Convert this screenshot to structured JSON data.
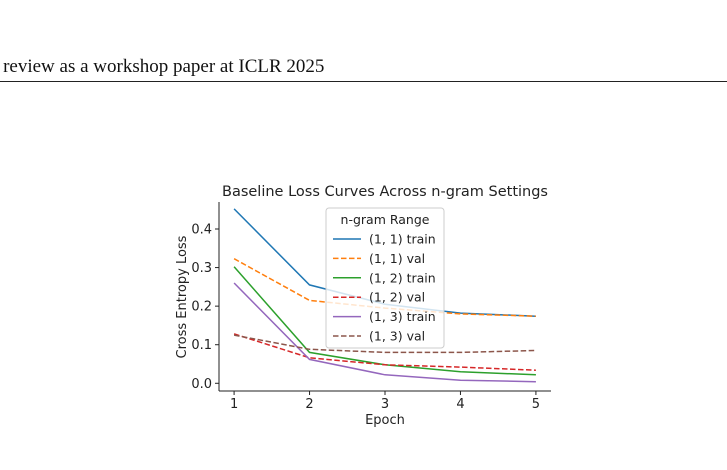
{
  "page": {
    "header": "r review as a workshop paper at ICLR 2025"
  },
  "chart_data": {
    "type": "line",
    "title": "Baseline Loss Curves Across n-gram Settings",
    "xlabel": "Epoch",
    "ylabel": "Cross Entropy Loss",
    "x": [
      1,
      2,
      3,
      4,
      5
    ],
    "xlim": [
      0.8,
      5.2
    ],
    "ylim": [
      -0.02,
      0.47
    ],
    "xticks": [
      1,
      2,
      3,
      4,
      5
    ],
    "yticks": [
      0.0,
      0.1,
      0.2,
      0.3,
      0.4
    ],
    "ytick_labels": [
      "0.0",
      "0.1",
      "0.2",
      "0.3",
      "0.4"
    ],
    "grid": false,
    "legend": {
      "title": "n-gram Range",
      "placement": "top-center"
    },
    "series": [
      {
        "name": "(1, 1) train",
        "color": "#1f77b4",
        "style": "solid",
        "values": [
          0.452,
          0.255,
          0.205,
          0.182,
          0.174
        ]
      },
      {
        "name": "(1, 1) val",
        "color": "#ff7f0e",
        "style": "dashed",
        "values": [
          0.323,
          0.215,
          0.195,
          0.18,
          0.174
        ]
      },
      {
        "name": "(1, 2) train",
        "color": "#2ca02c",
        "style": "solid",
        "values": [
          0.302,
          0.08,
          0.048,
          0.03,
          0.022
        ]
      },
      {
        "name": "(1, 2) val",
        "color": "#d62728",
        "style": "dashed",
        "values": [
          0.128,
          0.066,
          0.048,
          0.042,
          0.034
        ]
      },
      {
        "name": "(1, 3) train",
        "color": "#9467bd",
        "style": "solid",
        "values": [
          0.26,
          0.062,
          0.022,
          0.008,
          0.004
        ]
      },
      {
        "name": "(1, 3) val",
        "color": "#8c564b",
        "style": "dashed",
        "values": [
          0.125,
          0.088,
          0.08,
          0.08,
          0.085
        ]
      }
    ]
  }
}
